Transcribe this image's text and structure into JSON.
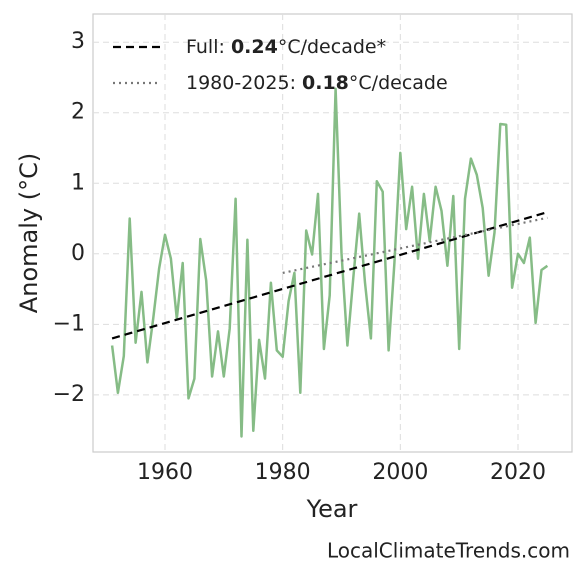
{
  "chart_data": {
    "type": "line",
    "xlabel": "Year",
    "ylabel": "Anomaly (°C)",
    "xlim": [
      1947.76,
      2029.18
    ],
    "ylim": [
      -2.81,
      3.4
    ],
    "xticks": [
      1960,
      1980,
      2000,
      2020
    ],
    "yticks": [
      {
        "value": -2,
        "label": "−2"
      },
      {
        "value": -1,
        "label": "−1"
      },
      0,
      1,
      2,
      3
    ],
    "grid": true,
    "legend": "upper left",
    "x": [
      1951,
      1952,
      1953,
      1954,
      1955,
      1956,
      1957,
      1958,
      1959,
      1960,
      1961,
      1962,
      1963,
      1964,
      1965,
      1966,
      1967,
      1968,
      1969,
      1970,
      1971,
      1972,
      1973,
      1974,
      1975,
      1976,
      1977,
      1978,
      1979,
      1980,
      1981,
      1982,
      1983,
      1984,
      1985,
      1986,
      1987,
      1988,
      1989,
      1990,
      1991,
      1992,
      1993,
      1994,
      1995,
      1996,
      1997,
      1998,
      1999,
      2000,
      2001,
      2002,
      2003,
      2004,
      2005,
      2006,
      2007,
      2008,
      2009,
      2010,
      2011,
      2012,
      2013,
      2014,
      2015,
      2016,
      2017,
      2018,
      2019,
      2020,
      2021,
      2022,
      2023,
      2024,
      2025
    ],
    "values": [
      -1.3,
      -1.97,
      -1.45,
      0.5,
      -1.26,
      -0.54,
      -1.54,
      -0.92,
      -0.21,
      0.27,
      -0.07,
      -0.92,
      -0.13,
      -2.05,
      -1.77,
      0.21,
      -0.38,
      -1.74,
      -1.1,
      -1.74,
      -1.06,
      0.78,
      -2.59,
      0.2,
      -2.51,
      -1.22,
      -1.77,
      -0.41,
      -1.37,
      -1.46,
      -0.67,
      -0.27,
      -1.97,
      0.33,
      -0.01,
      0.85,
      -1.35,
      -0.59,
      2.34,
      0.01,
      -1.3,
      -0.34,
      0.57,
      -0.41,
      -1.2,
      1.03,
      0.88,
      -1.37,
      -0.13,
      1.43,
      0.35,
      0.95,
      -0.07,
      0.85,
      0.18,
      0.95,
      0.61,
      -0.17,
      0.82,
      -1.35,
      0.78,
      1.35,
      1.12,
      0.65,
      -0.31,
      0.3,
      1.84,
      1.83,
      -0.48,
      0.0,
      -0.13,
      0.23,
      -0.98,
      -0.23,
      -0.17
    ],
    "color": "#86bc86",
    "trends": [
      {
        "label_parts": [
          "Full: ",
          "0.24",
          "°C/decade*"
        ],
        "color": "#000000",
        "dash": "dashed",
        "x": [
          1951,
          2025
        ],
        "values": [
          -1.2,
          0.59
        ]
      },
      {
        "label_parts": [
          "1980-2025: ",
          "0.18",
          "°C/decade"
        ],
        "color": "#777777",
        "dash": "dotted",
        "x": [
          1980,
          2025
        ],
        "values": [
          -0.27,
          0.51
        ]
      }
    ],
    "watermark": "LocalClimateTrends.com"
  }
}
